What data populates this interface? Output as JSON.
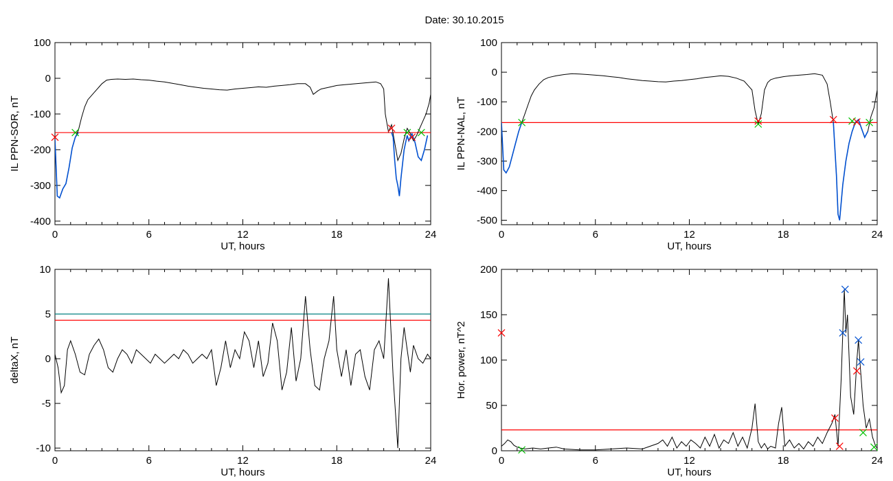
{
  "figure": {
    "title": "Date:  30.10.2015"
  },
  "chart_data": [
    {
      "id": "p1",
      "type": "line",
      "xlabel": "UT, hours",
      "ylabel": "IL PPN-SOR, nT",
      "xlim": [
        0,
        24
      ],
      "ylim": [
        -410,
        100
      ],
      "xticks": [
        0,
        6,
        12,
        18,
        24
      ],
      "yticks": [
        100,
        0,
        -100,
        -200,
        -300,
        -400
      ],
      "threshold_lines": [
        {
          "y": -152,
          "color": "#ff0000"
        }
      ],
      "series": [
        {
          "color": "#000000",
          "x": [
            0,
            0.15,
            0.3,
            0.5,
            0.7,
            0.9,
            1.1,
            1.3,
            1.5,
            1.7,
            1.9,
            2.1,
            2.3,
            2.5,
            2.8,
            3.0,
            3.3,
            3.6,
            4,
            4.5,
            5,
            5.5,
            6,
            6.5,
            7,
            7.5,
            8,
            8.5,
            9,
            9.5,
            10,
            10.5,
            11,
            11.5,
            12,
            12.5,
            13,
            13.5,
            14,
            14.5,
            15,
            15.5,
            16,
            16.3,
            16.5,
            16.8,
            17,
            17.5,
            18,
            18.5,
            19,
            19.5,
            20,
            20.5,
            20.8,
            21.0,
            21.1,
            21.3,
            21.5,
            21.7,
            21.9,
            22.1,
            22.3,
            22.5,
            22.7,
            22.9,
            23.1,
            23.3,
            23.5,
            23.7,
            23.9,
            24.0
          ],
          "y": [
            -170,
            -330,
            -335,
            -310,
            -295,
            -250,
            -195,
            -165,
            -145,
            -110,
            -80,
            -60,
            -50,
            -40,
            -25,
            -15,
            -5,
            -3,
            -2,
            -3,
            -2,
            -4,
            -5,
            -8,
            -10,
            -14,
            -18,
            -22,
            -25,
            -28,
            -30,
            -32,
            -33,
            -30,
            -28,
            -26,
            -24,
            -25,
            -22,
            -20,
            -18,
            -15,
            -15,
            -25,
            -45,
            -35,
            -30,
            -25,
            -20,
            -18,
            -16,
            -14,
            -12,
            -10,
            -15,
            -30,
            -100,
            -150,
            -130,
            -180,
            -230,
            -210,
            -170,
            -140,
            -155,
            -175,
            -160,
            -140,
            -120,
            -100,
            -70,
            -45
          ]
        },
        {
          "color": "#0050d0",
          "x": [
            0,
            0.15,
            0.3,
            0.5,
            0.7,
            0.9,
            1.1,
            1.3,
            1.5
          ],
          "y": [
            -170,
            -330,
            -335,
            -310,
            -295,
            -250,
            -195,
            -165,
            -152
          ]
        },
        {
          "color": "#0050d0",
          "x": [
            21.5,
            21.6,
            21.7,
            21.8,
            21.9,
            22.0,
            22.1,
            22.2,
            22.3,
            22.4,
            22.5,
            22.6,
            22.8,
            23.0,
            23.2,
            23.4,
            23.6,
            23.8
          ],
          "y": [
            -152,
            -165,
            -230,
            -280,
            -300,
            -330,
            -280,
            -240,
            -200,
            -180,
            -160,
            -175,
            -155,
            -180,
            -220,
            -230,
            -200,
            -160
          ]
        }
      ],
      "markers": [
        {
          "x": 0,
          "y": -165,
          "color": "#ff0000"
        },
        {
          "x": 1.3,
          "y": -152,
          "color": "#00c000"
        },
        {
          "x": 21.5,
          "y": -140,
          "color": "#ff0000"
        },
        {
          "x": 22.5,
          "y": -152,
          "color": "#00c000"
        },
        {
          "x": 22.8,
          "y": -165,
          "color": "#ff0000"
        },
        {
          "x": 23.4,
          "y": -152,
          "color": "#00c000"
        }
      ]
    },
    {
      "id": "p2",
      "type": "line",
      "xlabel": "UT, hours",
      "ylabel": "IL PPN-NAL, nT",
      "xlim": [
        0,
        24
      ],
      "ylim": [
        -515,
        100
      ],
      "xticks": [
        0,
        6,
        12,
        18,
        24
      ],
      "yticks": [
        100,
        0,
        -100,
        -200,
        -300,
        -400,
        -500
      ],
      "threshold_lines": [
        {
          "y": -170,
          "color": "#ff0000"
        }
      ],
      "series": [
        {
          "color": "#000000",
          "x": [
            0,
            0.15,
            0.3,
            0.5,
            0.7,
            0.9,
            1.1,
            1.3,
            1.5,
            1.7,
            1.9,
            2.1,
            2.4,
            2.7,
            3.0,
            3.5,
            4,
            4.5,
            5,
            5.5,
            6,
            6.5,
            7,
            7.5,
            8,
            8.5,
            9,
            9.5,
            10,
            10.5,
            11,
            11.5,
            12,
            12.5,
            13,
            13.5,
            14,
            14.5,
            15,
            15.5,
            16,
            16.2,
            16.4,
            16.6,
            16.8,
            17.0,
            17.2,
            17.5,
            18,
            18.5,
            19,
            19.5,
            20,
            20.5,
            20.8,
            21.0,
            21.2,
            21.4,
            21.5,
            21.6,
            21.8,
            22.0,
            22.2,
            22.4,
            22.6,
            22.8,
            23.0,
            23.2,
            23.4,
            23.6,
            23.8,
            24.0
          ],
          "y": [
            -170,
            -330,
            -340,
            -320,
            -280,
            -240,
            -200,
            -170,
            -140,
            -110,
            -80,
            -60,
            -40,
            -25,
            -18,
            -12,
            -8,
            -5,
            -6,
            -8,
            -10,
            -12,
            -15,
            -18,
            -22,
            -25,
            -28,
            -30,
            -32,
            -33,
            -30,
            -28,
            -25,
            -22,
            -18,
            -15,
            -12,
            -14,
            -20,
            -30,
            -60,
            -130,
            -175,
            -140,
            -60,
            -35,
            -25,
            -20,
            -15,
            -12,
            -10,
            -8,
            -5,
            -10,
            -40,
            -100,
            -170,
            -350,
            -480,
            -500,
            -380,
            -300,
            -240,
            -200,
            -170,
            -160,
            -190,
            -220,
            -200,
            -150,
            -120,
            -60
          ]
        },
        {
          "color": "#0050d0",
          "x": [
            0,
            0.15,
            0.3,
            0.5,
            0.7,
            0.9,
            1.1,
            1.3
          ],
          "y": [
            -170,
            -330,
            -340,
            -320,
            -280,
            -240,
            -200,
            -170
          ]
        },
        {
          "color": "#0050d0",
          "x": [
            21.2,
            21.4,
            21.5,
            21.6,
            21.8,
            22.0,
            22.2,
            22.4,
            22.6,
            22.8,
            23.0,
            23.2,
            23.4
          ],
          "y": [
            -170,
            -350,
            -480,
            -500,
            -380,
            -300,
            -240,
            -200,
            -170,
            -160,
            -190,
            -220,
            -200
          ]
        }
      ],
      "markers": [
        {
          "x": 1.3,
          "y": -170,
          "color": "#00c000"
        },
        {
          "x": 16.4,
          "y": -165,
          "color": "#ff0000"
        },
        {
          "x": 16.4,
          "y": -175,
          "color": "#00c000"
        },
        {
          "x": 21.2,
          "y": -160,
          "color": "#ff0000"
        },
        {
          "x": 22.4,
          "y": -165,
          "color": "#00c000"
        },
        {
          "x": 22.7,
          "y": -168,
          "color": "#ff0000"
        },
        {
          "x": 23.5,
          "y": -170,
          "color": "#00c000"
        }
      ]
    },
    {
      "id": "p3",
      "type": "line",
      "xlabel": "UT, hours",
      "ylabel": "deltaX, nT",
      "xlim": [
        0,
        24
      ],
      "ylim": [
        -10.3,
        10
      ],
      "xticks": [
        0,
        6,
        12,
        18,
        24
      ],
      "yticks": [
        10,
        5,
        0,
        -5,
        -10
      ],
      "threshold_lines": [
        {
          "y": 5,
          "color": "#008080"
        },
        {
          "y": 4.3,
          "color": "#ff0000"
        }
      ],
      "series": [
        {
          "color": "#000000",
          "x": [
            0,
            0.2,
            0.4,
            0.6,
            0.8,
            1.0,
            1.3,
            1.6,
            1.9,
            2.2,
            2.5,
            2.8,
            3.1,
            3.4,
            3.7,
            4.0,
            4.3,
            4.6,
            4.9,
            5.2,
            5.5,
            5.8,
            6.1,
            6.4,
            6.7,
            7.0,
            7.3,
            7.6,
            7.9,
            8.2,
            8.5,
            8.8,
            9.1,
            9.4,
            9.7,
            10.0,
            10.3,
            10.6,
            10.9,
            11.2,
            11.5,
            11.8,
            12.1,
            12.4,
            12.7,
            13.0,
            13.3,
            13.6,
            13.9,
            14.2,
            14.5,
            14.8,
            15.1,
            15.4,
            15.7,
            16.0,
            16.3,
            16.6,
            16.9,
            17.2,
            17.5,
            17.8,
            18.0,
            18.3,
            18.6,
            18.9,
            19.2,
            19.5,
            19.8,
            20.1,
            20.4,
            20.7,
            21.0,
            21.3,
            21.6,
            21.9,
            22.1,
            22.3,
            22.5,
            22.7,
            22.9,
            23.2,
            23.5,
            23.8,
            24.0
          ],
          "y": [
            0.5,
            -1,
            -3.8,
            -3,
            1,
            2,
            0.5,
            -1.5,
            -1.8,
            0.5,
            1.5,
            2.2,
            1,
            -1,
            -1.5,
            0,
            1,
            0.5,
            -0.5,
            1,
            0.5,
            0,
            -0.5,
            0.5,
            0,
            -0.5,
            0,
            0.5,
            0,
            1,
            0.5,
            -0.5,
            0,
            0.5,
            0,
            1,
            -3,
            -1,
            2,
            -1,
            1,
            0,
            3,
            2,
            -1,
            2,
            -2,
            -0.5,
            4,
            2,
            -3.5,
            -1.5,
            3.5,
            -2.5,
            0,
            7,
            1,
            -3,
            -3.5,
            0,
            2,
            7,
            1,
            -2,
            1,
            -3,
            0.5,
            1,
            -2,
            -3.5,
            1,
            2,
            0,
            9,
            -2,
            -10,
            0,
            3.5,
            1,
            -1.5,
            1.5,
            0,
            -0.5,
            0.5,
            0
          ]
        }
      ],
      "markers": []
    },
    {
      "id": "p4",
      "type": "line",
      "xlabel": "UT, hours",
      "ylabel": "Hor. power, nT^2",
      "xlim": [
        0,
        24
      ],
      "ylim": [
        0,
        200
      ],
      "xticks": [
        0,
        6,
        12,
        18,
        24
      ],
      "yticks": [
        0,
        50,
        100,
        150,
        200
      ],
      "threshold_lines": [
        {
          "y": 23,
          "color": "#ff0000"
        }
      ],
      "series": [
        {
          "color": "#000000",
          "x": [
            0,
            0.2,
            0.4,
            0.6,
            0.8,
            1.0,
            1.2,
            1.5,
            2.0,
            2.5,
            3,
            3.5,
            4,
            5,
            6,
            7,
            8,
            9,
            9.5,
            10,
            10.3,
            10.6,
            10.9,
            11.2,
            11.5,
            11.8,
            12.1,
            12.4,
            12.7,
            13.0,
            13.3,
            13.6,
            13.9,
            14.2,
            14.5,
            14.8,
            15.1,
            15.4,
            15.7,
            16.0,
            16.2,
            16.4,
            16.6,
            16.8,
            17.0,
            17.2,
            17.5,
            17.7,
            17.9,
            18.1,
            18.4,
            18.7,
            19.0,
            19.3,
            19.6,
            19.9,
            20.2,
            20.5,
            20.8,
            21.1,
            21.3,
            21.5,
            21.7,
            21.9,
            22.0,
            22.1,
            22.3,
            22.5,
            22.7,
            22.8,
            22.9,
            23.1,
            23.3,
            23.5,
            23.7,
            23.9,
            24.0
          ],
          "y": [
            5,
            8,
            12,
            10,
            6,
            4,
            3,
            2,
            3,
            2,
            3,
            4,
            2,
            1,
            1,
            2,
            3,
            2,
            5,
            8,
            12,
            5,
            15,
            3,
            10,
            5,
            12,
            8,
            3,
            15,
            5,
            18,
            3,
            12,
            8,
            20,
            5,
            15,
            3,
            25,
            52,
            10,
            3,
            8,
            2,
            5,
            3,
            30,
            48,
            5,
            12,
            3,
            8,
            2,
            10,
            5,
            15,
            8,
            20,
            30,
            40,
            5,
            80,
            178,
            130,
            150,
            60,
            40,
            100,
            122,
            98,
            50,
            25,
            35,
            15,
            5,
            3
          ]
        }
      ],
      "markers": [
        {
          "x": 0,
          "y": 130,
          "color": "#ff0000"
        },
        {
          "x": 1.3,
          "y": 1,
          "color": "#00c000"
        },
        {
          "x": 21.3,
          "y": 36,
          "color": "#ff0000"
        },
        {
          "x": 21.6,
          "y": 5,
          "color": "#ff0000"
        },
        {
          "x": 21.8,
          "y": 130,
          "color": "#0050d0"
        },
        {
          "x": 21.95,
          "y": 178,
          "color": "#0050d0"
        },
        {
          "x": 22.7,
          "y": 88,
          "color": "#ff0000"
        },
        {
          "x": 22.8,
          "y": 122,
          "color": "#0050d0"
        },
        {
          "x": 22.95,
          "y": 98,
          "color": "#0050d0"
        },
        {
          "x": 23.1,
          "y": 20,
          "color": "#00c000"
        },
        {
          "x": 23.8,
          "y": 4,
          "color": "#00c000"
        }
      ]
    }
  ]
}
